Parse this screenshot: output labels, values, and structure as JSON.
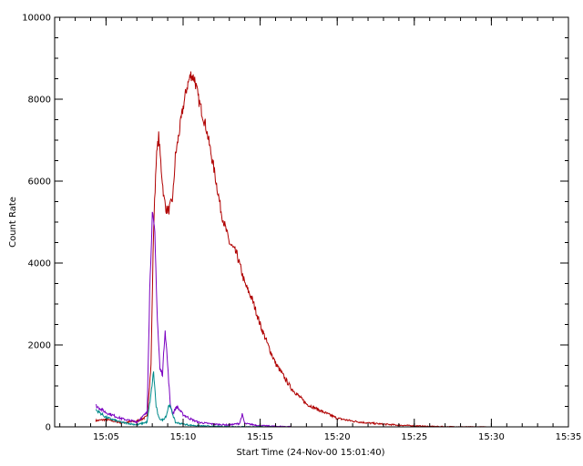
{
  "chart_data": {
    "type": "line",
    "title": "",
    "xlabel": "Start Time (24-Nov-00 15:01:40)",
    "ylabel": "Count Rate",
    "xlim": [
      "15:01:40",
      "15:35:00"
    ],
    "ylim": [
      0,
      10000
    ],
    "x_ticks": [
      "15:05",
      "15:10",
      "15:15",
      "15:20",
      "15:25",
      "15:30",
      "15:35"
    ],
    "y_ticks": [
      "0",
      "2000",
      "4000",
      "6000",
      "8000",
      "10000"
    ],
    "grid": false,
    "legend": "none",
    "series": [
      {
        "color": "#b00000",
        "x": [
          "15:04:20",
          "15:05:00",
          "15:06:00",
          "15:07:00",
          "15:07:40",
          "15:07:55",
          "15:08:05",
          "15:08:15",
          "15:08:25",
          "15:08:35",
          "15:08:45",
          "15:08:55",
          "15:09:05",
          "15:09:20",
          "15:09:30",
          "15:09:45",
          "15:10:00",
          "15:10:15",
          "15:10:30",
          "15:10:45",
          "15:11:00",
          "15:11:30",
          "15:12:00",
          "15:12:30",
          "15:13:00",
          "15:13:30",
          "15:14:00",
          "15:14:30",
          "15:15:00",
          "15:15:30",
          "15:16:00",
          "15:17:00",
          "15:18:00",
          "15:19:00",
          "15:20:00",
          "15:21:00",
          "15:22:00",
          "15:23:00",
          "15:24:00",
          "15:25:00",
          "15:26:00",
          "15:27:00",
          "15:28:00",
          "15:29:00",
          "15:30:00"
        ],
        "values": [
          150,
          180,
          100,
          140,
          250,
          1500,
          4800,
          6500,
          7100,
          6300,
          5600,
          5300,
          5300,
          5600,
          6600,
          7200,
          7800,
          8300,
          8600,
          8500,
          8000,
          7300,
          6300,
          5200,
          4500,
          4200,
          3500,
          3100,
          2500,
          2000,
          1550,
          950,
          560,
          380,
          210,
          140,
          95,
          65,
          42,
          25,
          12,
          6,
          3,
          1,
          0
        ]
      },
      {
        "color": "#7a00c0",
        "x": [
          "15:04:20",
          "15:05:00",
          "15:06:00",
          "15:07:00",
          "15:07:40",
          "15:07:50",
          "15:08:00",
          "15:08:10",
          "15:08:20",
          "15:08:30",
          "15:08:40",
          "15:08:50",
          "15:09:00",
          "15:09:10",
          "15:09:20",
          "15:09:35",
          "15:10:00",
          "15:10:30",
          "15:11:00",
          "15:12:00",
          "15:13:00",
          "15:13:40",
          "15:13:50",
          "15:14:00",
          "15:15:00",
          "15:16:00",
          "15:17:00"
        ],
        "values": [
          520,
          350,
          200,
          120,
          350,
          3300,
          5200,
          4700,
          2600,
          1400,
          1300,
          2400,
          1500,
          550,
          320,
          500,
          300,
          190,
          110,
          65,
          45,
          85,
          300,
          80,
          30,
          15,
          5
        ]
      },
      {
        "color": "#008a8a",
        "x": [
          "15:04:20",
          "15:05:00",
          "15:06:00",
          "15:07:00",
          "15:07:40",
          "15:07:55",
          "15:08:05",
          "15:08:15",
          "15:08:25",
          "15:08:40",
          "15:08:55",
          "15:09:05",
          "15:09:15",
          "15:09:30",
          "15:10:00",
          "15:10:30",
          "15:11:00",
          "15:12:00",
          "15:13:00",
          "15:14:00",
          "15:15:00",
          "15:16:00"
        ],
        "values": [
          420,
          230,
          110,
          50,
          120,
          800,
          1350,
          500,
          220,
          160,
          280,
          550,
          400,
          110,
          65,
          40,
          25,
          12,
          8,
          5,
          3,
          0
        ]
      }
    ]
  }
}
